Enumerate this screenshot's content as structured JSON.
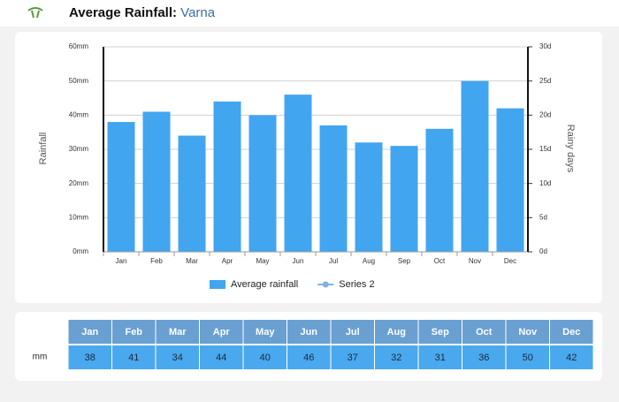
{
  "chart_data": {
    "type": "bar",
    "title": "Average Rainfall:",
    "location": "Varna",
    "y_label": "Rainfall",
    "y2_label": "Rainy days",
    "categories": [
      "Jan",
      "Feb",
      "Mar",
      "Apr",
      "May",
      "Jun",
      "Jul",
      "Aug",
      "Sep",
      "Oct",
      "Nov",
      "Dec"
    ],
    "series": [
      {
        "name": "Average rainfall",
        "color": "#42a5f0",
        "values": [
          38,
          41,
          34,
          44,
          40,
          46,
          37,
          32,
          31,
          36,
          50,
          42
        ]
      },
      {
        "name": "Series 2",
        "color": "#7fb3de",
        "axis": "y2",
        "type": "line",
        "values": [
          null,
          null,
          null,
          null,
          null,
          null,
          null,
          null,
          null,
          null,
          null,
          null
        ]
      }
    ],
    "ylim": [
      0,
      60
    ],
    "yticks": [
      {
        "value": 0,
        "label": "0mm"
      },
      {
        "value": 10,
        "label": "10mm"
      },
      {
        "value": 20,
        "label": "20mm"
      },
      {
        "value": 30,
        "label": "30mm"
      },
      {
        "value": 40,
        "label": "40mm"
      },
      {
        "value": 50,
        "label": "50mm"
      },
      {
        "value": 60,
        "label": "60mm"
      }
    ],
    "y2lim": [
      0,
      30
    ],
    "y2ticks": [
      {
        "value": 0,
        "label": "0d"
      },
      {
        "value": 5,
        "label": "5d"
      },
      {
        "value": 10,
        "label": "10d"
      },
      {
        "value": 15,
        "label": "15d"
      },
      {
        "value": 20,
        "label": "20d"
      },
      {
        "value": 25,
        "label": "25d"
      },
      {
        "value": 30,
        "label": "30d"
      }
    ],
    "grid": true,
    "legend": "bottom",
    "table_row_label": "mm"
  }
}
